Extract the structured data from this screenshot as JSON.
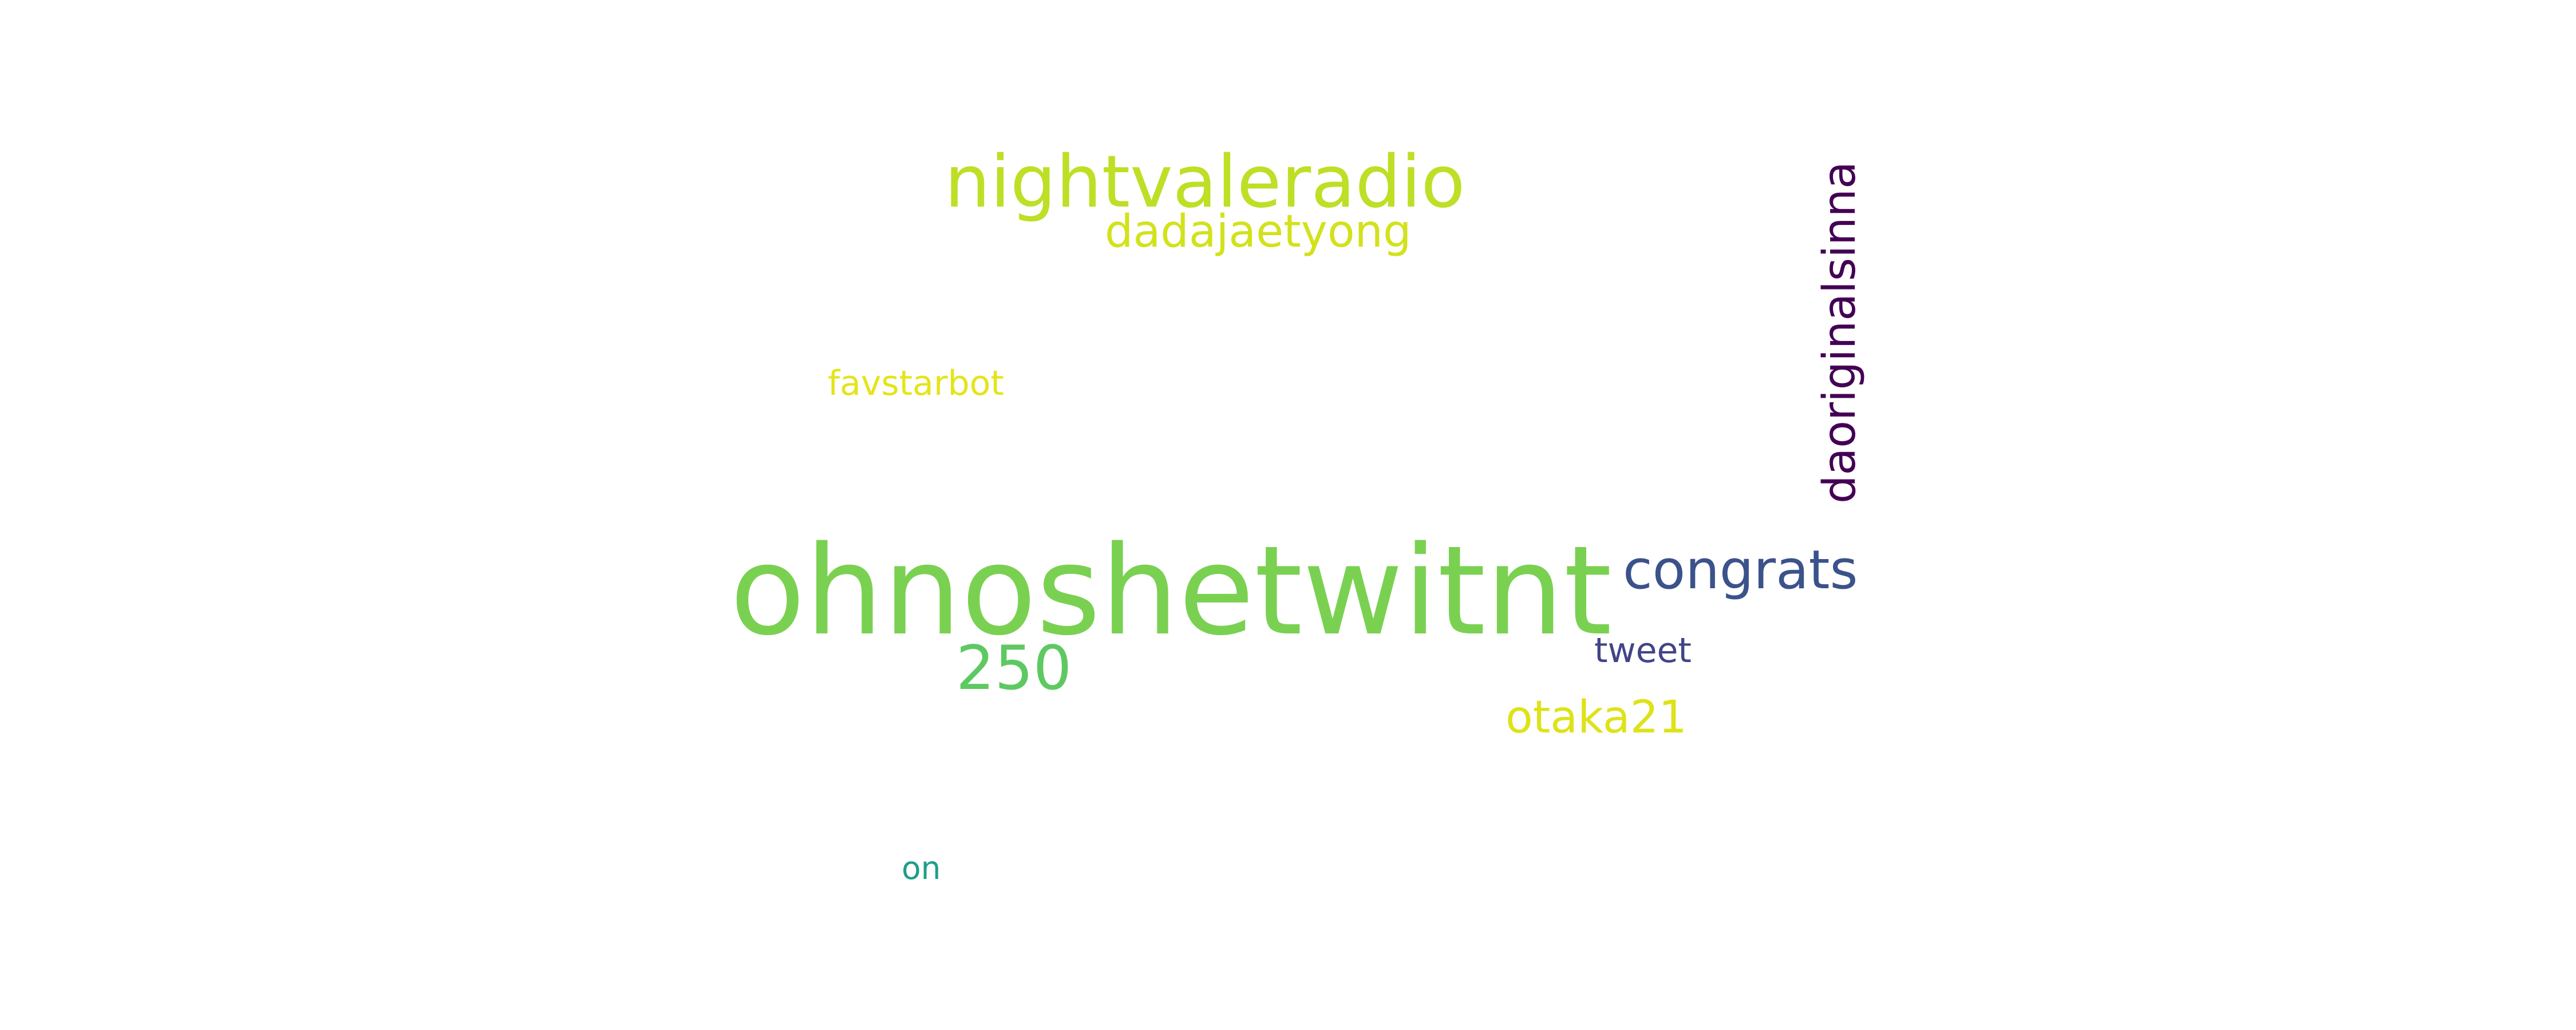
{
  "wordcloud": {
    "words": [
      {
        "text": "ohnoshetwitnt",
        "color": "#7ad151"
      },
      {
        "text": "nightvaleradio",
        "color": "#bddf26"
      },
      {
        "text": "dadajaetyong",
        "color": "#d2e21b"
      },
      {
        "text": "favstarbot",
        "color": "#e5e419"
      },
      {
        "text": "congrats",
        "color": "#3b528b"
      },
      {
        "text": "250",
        "color": "#5ec962"
      },
      {
        "text": "tweet",
        "color": "#414487"
      },
      {
        "text": "otaka21",
        "color": "#dde318"
      },
      {
        "text": "on",
        "color": "#1f9e89"
      },
      {
        "text": "daoriginalsinna",
        "color": "#440154"
      }
    ]
  }
}
